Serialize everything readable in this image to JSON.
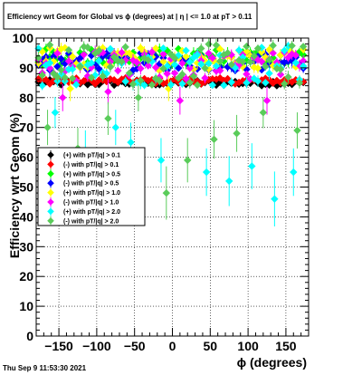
{
  "chart_data": {
    "type": "scatter",
    "title": "Efficiency wrt Geom for Global vs ϕ (degrees) at | η | <= 1.0 at pT > 0.11",
    "xlabel": "ϕ (degrees)",
    "ylabel": "Efficiency wrt Geom (%)",
    "xlim": [
      -180,
      180
    ],
    "ylim": [
      0,
      100
    ],
    "x_ticks": [
      -150,
      -100,
      -50,
      0,
      50,
      100,
      150
    ],
    "x_tick_labels": [
      "−150",
      "−100",
      "−50",
      "0",
      "50",
      "100",
      "150"
    ],
    "y_ticks": [
      0,
      10,
      20,
      30,
      40,
      50,
      60,
      70,
      80,
      90,
      100
    ],
    "y_tick_labels": [
      "0",
      "10",
      "20",
      "30",
      "40",
      "50",
      "60",
      "70",
      "80",
      "90",
      "100"
    ],
    "grid": true,
    "legend_position": "middle-left",
    "datestamp": "Thu Sep  9 11:53:30 2021",
    "series": [
      {
        "name": "(+) with pT/|q| > 0.1",
        "color": "#000000",
        "base": 85.0,
        "spread": 1.0,
        "low_points": []
      },
      {
        "name": "(-) with pT/|q| > 0.1",
        "color": "#ff0000",
        "base": 85.6,
        "spread": 1.0,
        "low_points": []
      },
      {
        "name": "(+) with pT/|q| > 0.5",
        "color": "#00ff00",
        "base": 93.5,
        "spread": 3.0,
        "low_points": []
      },
      {
        "name": "(-) with pT/|q| > 0.5",
        "color": "#0000ff",
        "base": 92.0,
        "spread": 3.0,
        "low_points": []
      },
      {
        "name": "(+) with pT/|q| > 1.0",
        "color": "#ffff00",
        "base": 93.0,
        "spread": 4.0,
        "low_points": [
          {
            "x": -135,
            "y": 83
          },
          {
            "x": -5,
            "y": 83
          }
        ]
      },
      {
        "name": "(-) with pT/|q| > 1.0",
        "color": "#ff00ff",
        "base": 90.5,
        "spread": 5.0,
        "low_points": [
          {
            "x": -145,
            "y": 80
          },
          {
            "x": -85,
            "y": 82
          },
          {
            "x": 10,
            "y": 79
          },
          {
            "x": 125,
            "y": 79
          }
        ]
      },
      {
        "name": "(+) with pT/|q| > 2.0",
        "color": "#00ffff",
        "base": 91.0,
        "spread": 7.0,
        "low_points": [
          {
            "x": -155,
            "y": 75
          },
          {
            "x": -115,
            "y": 62
          },
          {
            "x": -75,
            "y": 70
          },
          {
            "x": -55,
            "y": 65
          },
          {
            "x": -15,
            "y": 59
          },
          {
            "x": 45,
            "y": 55
          },
          {
            "x": 75,
            "y": 52
          },
          {
            "x": 105,
            "y": 57
          },
          {
            "x": 135,
            "y": 46
          },
          {
            "x": 160,
            "y": 55
          }
        ]
      },
      {
        "name": "(-) with pT/|q| > 2.0",
        "color": "#5acc5a",
        "base": 91.0,
        "spread": 7.0,
        "low_points": [
          {
            "x": -165,
            "y": 70
          },
          {
            "x": -125,
            "y": 63
          },
          {
            "x": -85,
            "y": 73
          },
          {
            "x": -45,
            "y": 80
          },
          {
            "x": -8,
            "y": 48
          },
          {
            "x": 20,
            "y": 59
          },
          {
            "x": 55,
            "y": 66
          },
          {
            "x": 85,
            "y": 68
          },
          {
            "x": 120,
            "y": 75
          },
          {
            "x": 165,
            "y": 69
          }
        ]
      }
    ]
  }
}
